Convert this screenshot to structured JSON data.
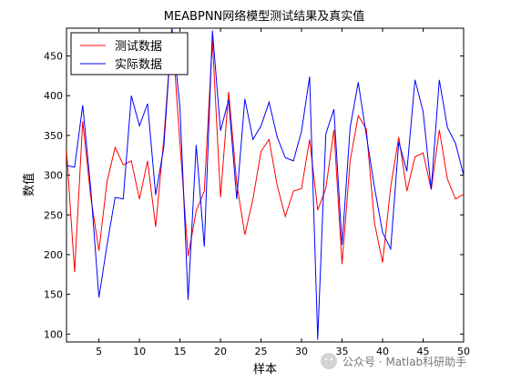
{
  "chart_data": {
    "type": "line",
    "title": "MEABPNN网络模型测试结果及真实值",
    "xlabel": "样本",
    "ylabel": "数值",
    "xlim": [
      1,
      50
    ],
    "ylim": [
      90,
      485
    ],
    "xticks": [
      5,
      10,
      15,
      20,
      25,
      30,
      35,
      40,
      45,
      50
    ],
    "yticks": [
      100,
      150,
      200,
      250,
      300,
      350,
      400,
      450
    ],
    "grid": false,
    "legend_position": "top-left",
    "x": [
      1,
      2,
      3,
      4,
      5,
      6,
      7,
      8,
      9,
      10,
      11,
      12,
      13,
      14,
      15,
      16,
      17,
      18,
      19,
      20,
      21,
      22,
      23,
      24,
      25,
      26,
      27,
      28,
      29,
      30,
      31,
      32,
      33,
      34,
      35,
      36,
      37,
      38,
      39,
      40,
      41,
      42,
      43,
      44,
      45,
      46,
      47,
      48,
      49,
      50
    ],
    "series": [
      {
        "name": "测试数据",
        "color": "#ff0000",
        "values": [
          332,
          178,
          368,
          272,
          205,
          292,
          335,
          313,
          318,
          270,
          318,
          235,
          345,
          485,
          340,
          198,
          255,
          280,
          470,
          272,
          405,
          290,
          225,
          270,
          330,
          345,
          287,
          248,
          280,
          283,
          345,
          256,
          283,
          357,
          188,
          318,
          375,
          358,
          240,
          190,
          285,
          348,
          280,
          323,
          328,
          282,
          357,
          295,
          270,
          276
        ]
      },
      {
        "name": "实际数据",
        "color": "#0000ff",
        "values": [
          312,
          310,
          388,
          282,
          146,
          212,
          272,
          270,
          400,
          362,
          390,
          275,
          335,
          485,
          385,
          143,
          338,
          210,
          482,
          356,
          395,
          270,
          396,
          345,
          362,
          392,
          348,
          322,
          318,
          355,
          424,
          93,
          352,
          383,
          212,
          360,
          417,
          350,
          285,
          228,
          207,
          342,
          305,
          420,
          380,
          282,
          420,
          360,
          340,
          300
        ]
      }
    ],
    "watermark": "公众号 · Matlab科研助手"
  }
}
